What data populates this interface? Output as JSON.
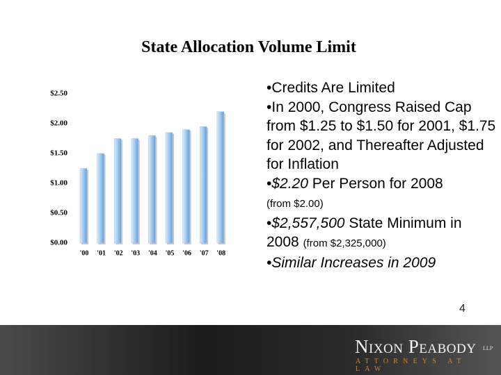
{
  "title": "State Allocation Volume Limit",
  "chart_data": {
    "type": "bar",
    "categories": [
      "'00",
      "'01",
      "'02",
      "'03",
      "'04",
      "'05",
      "'06",
      "'07",
      "'08"
    ],
    "values": [
      1.25,
      1.5,
      1.75,
      1.75,
      1.8,
      1.85,
      1.9,
      1.95,
      2.2
    ],
    "color": "#9ec8f0",
    "ylim": [
      0,
      2.5
    ],
    "yticks": [
      {
        "value": 0,
        "label": "$0.00"
      },
      {
        "value": 0.5,
        "label": "$0.50"
      },
      {
        "value": 1,
        "label": "$1.00"
      },
      {
        "value": 1.5,
        "label": "$1.50"
      },
      {
        "value": 2,
        "label": "$2.00"
      },
      {
        "value": 2.5,
        "label": "$2.50"
      }
    ],
    "grid": false
  },
  "bullets": [
    [
      "Credits Are Limited"
    ],
    [
      "In 2000, Congress Raised Cap from $1.25 to $1.50 for 2001, $1.75 for 2002, and Thereafter Adjusted for Inflation"
    ],
    [
      "$2.20",
      "Per Person for 2008",
      "(from $2.00)"
    ],
    [
      "$2,557,500",
      "State Minimum in 2008",
      "(from $2,325,000)"
    ],
    [
      "Similar Increases in 2009"
    ]
  ],
  "page_number": "4",
  "footer": {
    "firm": "Nixon Peabody",
    "suffix": "LLP",
    "tagline": "ATTORNEYS AT LAW"
  }
}
